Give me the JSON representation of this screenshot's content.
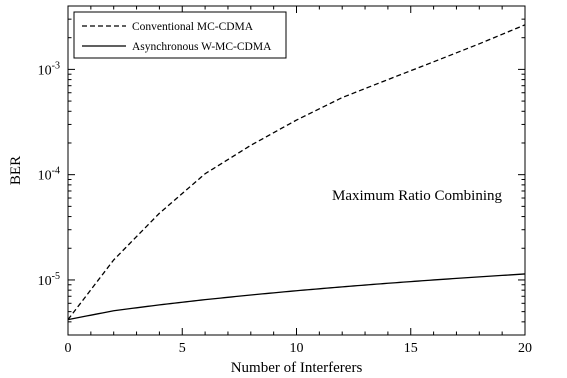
{
  "chart_data": {
    "type": "line",
    "title": "",
    "xlabel": "Number of Interferers",
    "ylabel": "BER",
    "xlim": [
      0,
      20
    ],
    "ylim": [
      3e-06,
      0.004
    ],
    "y_scale": "log",
    "grid": false,
    "legend_position": "top-left",
    "annotation": "Maximum Ratio Combining",
    "x_ticks": [
      0,
      5,
      10,
      15,
      20
    ],
    "x_tick_labels": [
      "0",
      "5",
      "10",
      "15",
      "20"
    ],
    "y_ticks": [
      {
        "value": 1e-05,
        "base": "10",
        "exp": "-5"
      },
      {
        "value": 0.0001,
        "base": "10",
        "exp": "-4"
      },
      {
        "value": 0.001,
        "base": "10",
        "exp": "-3"
      }
    ],
    "series": [
      {
        "name": "Conventional MC-CDMA",
        "style": "dashed",
        "color": "#000000",
        "x": [
          0,
          2,
          4,
          6,
          8,
          10,
          12,
          14,
          16,
          18,
          20
        ],
        "y": [
          4.2e-06,
          1.55e-05,
          4.3e-05,
          0.000102,
          0.00019,
          0.00033,
          0.00054,
          0.0008,
          0.00118,
          0.00175,
          0.00265
        ]
      },
      {
        "name": "Asynchronous W-MC-CDMA",
        "style": "solid",
        "color": "#000000",
        "x": [
          0,
          2,
          4,
          6,
          8,
          10,
          12,
          14,
          16,
          18,
          20
        ],
        "y": [
          4.2e-06,
          5.1e-06,
          5.8e-06,
          6.5e-06,
          7.2e-06,
          7.9e-06,
          8.6e-06,
          9.3e-06,
          1e-05,
          1.07e-05,
          1.14e-05
        ]
      }
    ]
  }
}
